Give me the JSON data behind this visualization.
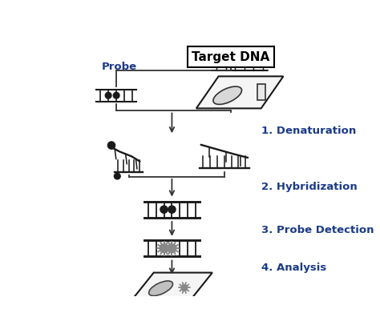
{
  "title": "Target DNA",
  "title_text_color": "black",
  "title_fontsize": 11,
  "title_fontweight": "bold",
  "background_color": "white",
  "label_color": "#1a3a8a",
  "label_fontsize": 9.5,
  "label_fontweight": "bold",
  "probe_label": "Probe",
  "steps": [
    "1. Denaturation",
    "2. Hybridization",
    "3. Probe Detection",
    "4. Analysis"
  ],
  "line_color": "#222222",
  "dna_color": "#1a1a1a",
  "star_color": "#999999"
}
